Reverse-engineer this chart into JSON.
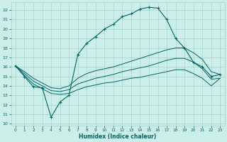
{
  "xlabel": "Humidex (Indice chaleur)",
  "bg_color": "#cceee8",
  "grid_color": "#a8d4cc",
  "line_color": "#006666",
  "xlim": [
    -0.5,
    23.5
  ],
  "ylim": [
    9.8,
    22.8
  ],
  "yticks": [
    10,
    11,
    12,
    13,
    14,
    15,
    16,
    17,
    18,
    19,
    20,
    21,
    22
  ],
  "xticks": [
    0,
    1,
    2,
    3,
    4,
    5,
    6,
    7,
    8,
    9,
    10,
    11,
    12,
    13,
    14,
    15,
    16,
    17,
    18,
    19,
    20,
    21,
    22,
    23
  ],
  "curve1_x": [
    0,
    1,
    2,
    3,
    4,
    5,
    6,
    7,
    8,
    9,
    10,
    11,
    12,
    13,
    14,
    15,
    16,
    17,
    18,
    19,
    20,
    21,
    22,
    23
  ],
  "curve1_y": [
    16.1,
    15.0,
    13.9,
    13.8,
    10.7,
    12.3,
    13.0,
    17.3,
    18.5,
    19.2,
    20.0,
    20.5,
    21.3,
    21.6,
    22.1,
    22.3,
    22.2,
    21.0,
    19.0,
    18.0,
    16.5,
    16.0,
    15.0,
    15.2
  ],
  "curve2_x": [
    0,
    1,
    2,
    3,
    4,
    5,
    6,
    7,
    8,
    9,
    10,
    11,
    12,
    13,
    14,
    15,
    16,
    17,
    18,
    19,
    20,
    21,
    22,
    23
  ],
  "curve2_y": [
    16.1,
    15.5,
    14.8,
    14.3,
    13.8,
    13.7,
    14.0,
    14.8,
    15.3,
    15.6,
    15.8,
    16.0,
    16.3,
    16.6,
    16.9,
    17.2,
    17.5,
    17.8,
    18.0,
    18.0,
    17.5,
    16.8,
    15.5,
    15.2
  ],
  "curve3_x": [
    0,
    1,
    2,
    3,
    4,
    5,
    6,
    7,
    8,
    9,
    10,
    11,
    12,
    13,
    14,
    15,
    16,
    17,
    18,
    19,
    20,
    21,
    22,
    23
  ],
  "curve3_y": [
    16.1,
    15.3,
    14.5,
    14.0,
    13.5,
    13.4,
    13.6,
    14.2,
    14.5,
    14.8,
    15.0,
    15.2,
    15.5,
    15.7,
    15.9,
    16.1,
    16.4,
    16.7,
    16.9,
    16.9,
    16.5,
    15.8,
    14.7,
    14.8
  ],
  "curve4_x": [
    0,
    1,
    2,
    3,
    4,
    5,
    6,
    7,
    8,
    9,
    10,
    11,
    12,
    13,
    14,
    15,
    16,
    17,
    18,
    19,
    20,
    21,
    22,
    23
  ],
  "curve4_y": [
    16.1,
    15.1,
    14.2,
    13.7,
    13.2,
    13.1,
    13.2,
    13.6,
    13.9,
    14.1,
    14.3,
    14.4,
    14.6,
    14.8,
    14.9,
    15.1,
    15.3,
    15.5,
    15.7,
    15.7,
    15.3,
    14.8,
    14.0,
    14.8
  ]
}
